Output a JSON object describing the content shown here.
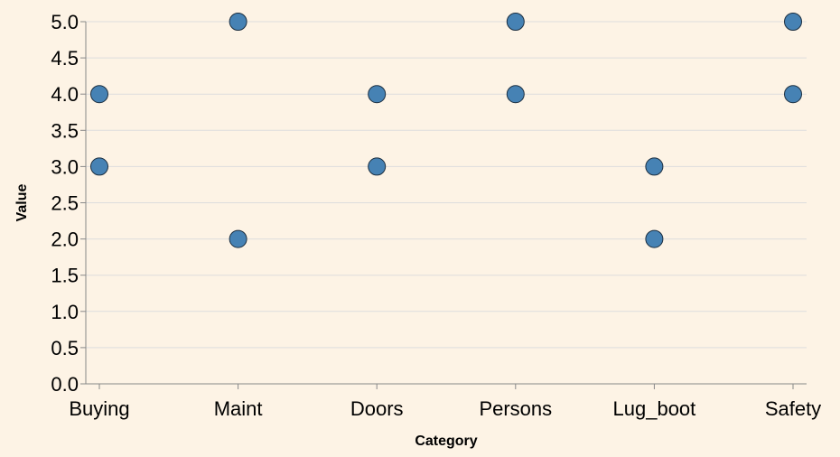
{
  "chart_data": {
    "type": "scatter",
    "title": "",
    "xlabel": "Category",
    "ylabel": "Value",
    "categories": [
      "Buying",
      "Maint",
      "Doors",
      "Persons",
      "Lug_boot",
      "Safety"
    ],
    "ylim": [
      0,
      5
    ],
    "yticks": [
      "0.0",
      "0.5",
      "1.0",
      "1.5",
      "2.0",
      "2.5",
      "3.0",
      "3.5",
      "4.0",
      "4.5",
      "5.0"
    ],
    "points": [
      {
        "category": "Buying",
        "value": 4
      },
      {
        "category": "Buying",
        "value": 3
      },
      {
        "category": "Maint",
        "value": 5
      },
      {
        "category": "Maint",
        "value": 2
      },
      {
        "category": "Doors",
        "value": 4
      },
      {
        "category": "Doors",
        "value": 3
      },
      {
        "category": "Persons",
        "value": 5
      },
      {
        "category": "Persons",
        "value": 4
      },
      {
        "category": "Lug_boot",
        "value": 3
      },
      {
        "category": "Lug_boot",
        "value": 2
      },
      {
        "category": "Safety",
        "value": 5
      },
      {
        "category": "Safety",
        "value": 4
      }
    ],
    "grid": true,
    "point_color": "#4682b4",
    "point_stroke": "#1c2e3f",
    "background": "#fdf3e5"
  }
}
